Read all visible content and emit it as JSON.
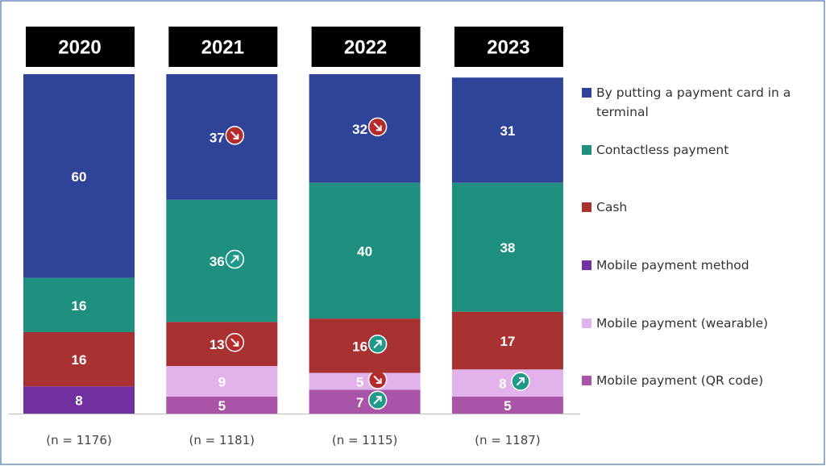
{
  "chart_data": {
    "type": "stacked_bar",
    "categories": [
      "2020",
      "2021",
      "2022",
      "2023"
    ],
    "sample_sizes": [
      "(n = 1176)",
      "(n = 1181)",
      "(n = 1115)",
      "(n = 1187)"
    ],
    "ylim": [
      0,
      100
    ],
    "series": [
      {
        "name": "By putting a payment card in a terminal",
        "color": "#2f4399",
        "values": [
          60,
          37,
          32,
          31
        ],
        "trends": [
          null,
          "down",
          "down",
          null
        ]
      },
      {
        "name": "Contactless payment",
        "color": "#1f8f80",
        "values": [
          16,
          36,
          40,
          38
        ],
        "trends": [
          null,
          "up",
          null,
          null
        ]
      },
      {
        "name": "Cash",
        "color": "#a83232",
        "values": [
          16,
          13,
          16,
          17
        ],
        "trends": [
          null,
          "down",
          "up",
          null
        ]
      },
      {
        "name": "Mobile payment method",
        "color": "#7030a0",
        "values": [
          8,
          null,
          null,
          null
        ],
        "trends": [
          null,
          null,
          null,
          null
        ]
      },
      {
        "name": "Mobile payment (wearable)",
        "color": "#e2b3ea",
        "values": [
          null,
          9,
          5,
          8
        ],
        "trends": [
          null,
          null,
          "down",
          "up"
        ]
      },
      {
        "name": "Mobile payment (QR code)",
        "color": "#a855a8",
        "values": [
          null,
          5,
          7,
          5
        ],
        "trends": [
          null,
          null,
          "up",
          null
        ]
      }
    ]
  }
}
